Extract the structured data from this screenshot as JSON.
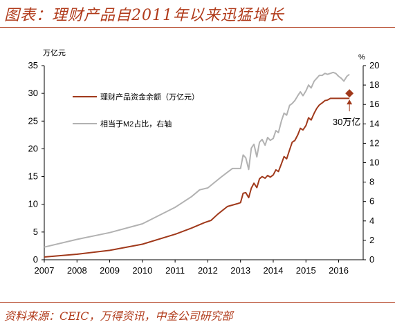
{
  "header": {
    "title": "图表：理财产品自2011年以来迅猛增长"
  },
  "footer": {
    "source": "资料来源：CEIC，万得资讯，中金公司研究部"
  },
  "colors": {
    "accent": "#b03a1a",
    "wmp_line": "#a0391b",
    "m2_line": "#b2b2b2"
  },
  "chart_data": {
    "type": "line",
    "x_ticks": [
      "2007",
      "2008",
      "2009",
      "2010",
      "2011",
      "2012",
      "2013",
      "2014",
      "2015",
      "2016"
    ],
    "xlim": [
      2007.0,
      2016.75
    ],
    "left_axis": {
      "unit": "万亿元",
      "ylim": [
        0,
        35
      ],
      "ticks": [
        "0",
        "5",
        "10",
        "15",
        "20",
        "25",
        "30",
        "35"
      ]
    },
    "right_axis": {
      "unit": "%",
      "ylim": [
        0,
        20
      ],
      "ticks": [
        "0",
        "2",
        "4",
        "6",
        "8",
        "10",
        "12",
        "14",
        "16",
        "18",
        "20"
      ]
    },
    "grid": false,
    "legend_position": "upper-left",
    "annotation": {
      "text": "30万亿",
      "x": 2016.33,
      "y": 30.0
    },
    "series": [
      {
        "name": "理财产品资金余额（万亿元）",
        "axis": "left",
        "x": [
          2007.0,
          2008.0,
          2009.0,
          2010.0,
          2011.0,
          2011.5,
          2011.9,
          2012.1,
          2012.3,
          2012.6,
          2012.9,
          2013.0,
          2013.08,
          2013.16,
          2013.25,
          2013.33,
          2013.41,
          2013.5,
          2013.58,
          2013.66,
          2013.75,
          2013.83,
          2013.91,
          2014.0,
          2014.08,
          2014.16,
          2014.25,
          2014.33,
          2014.41,
          2014.5,
          2014.58,
          2014.66,
          2014.75,
          2014.83,
          2014.91,
          2015.0,
          2015.08,
          2015.16,
          2015.25,
          2015.33,
          2015.41,
          2015.5,
          2015.58,
          2015.66,
          2015.75,
          2015.83,
          2015.91,
          2016.0,
          2016.16,
          2016.25,
          2016.33
        ],
        "values": [
          0.5,
          1.0,
          1.7,
          2.8,
          4.6,
          5.7,
          6.7,
          7.1,
          8.2,
          9.6,
          10.1,
          10.3,
          12.0,
          12.1,
          11.2,
          12.9,
          13.8,
          13.0,
          14.6,
          15.0,
          14.7,
          15.2,
          14.9,
          15.3,
          16.2,
          15.9,
          17.3,
          18.6,
          18.2,
          19.8,
          21.2,
          21.5,
          22.5,
          23.7,
          23.4,
          24.2,
          25.6,
          25.2,
          26.4,
          27.3,
          27.9,
          28.3,
          28.7,
          28.8,
          29.1,
          29.1,
          29.1,
          29.1,
          29.1,
          29.1,
          29.1
        ]
      },
      {
        "name": "相当于M2占比，右轴",
        "axis": "right",
        "x": [
          2007.0,
          2008.0,
          2009.0,
          2010.0,
          2011.0,
          2011.5,
          2011.75,
          2012.0,
          2012.4,
          2012.75,
          2012.92,
          2013.0,
          2013.08,
          2013.16,
          2013.25,
          2013.33,
          2013.41,
          2013.5,
          2013.58,
          2013.66,
          2013.75,
          2013.83,
          2013.91,
          2014.0,
          2014.08,
          2014.16,
          2014.25,
          2014.33,
          2014.41,
          2014.5,
          2014.58,
          2014.66,
          2014.75,
          2014.83,
          2014.91,
          2015.0,
          2015.08,
          2015.16,
          2015.25,
          2015.33,
          2015.41,
          2015.5,
          2015.58,
          2015.66,
          2015.75,
          2015.83,
          2015.91,
          2016.0,
          2016.08,
          2016.16,
          2016.25,
          2016.33
        ],
        "values": [
          1.3,
          2.1,
          2.8,
          3.7,
          5.4,
          6.5,
          7.2,
          7.4,
          8.5,
          9.4,
          9.4,
          9.4,
          10.8,
          10.5,
          9.3,
          11.5,
          11.9,
          10.6,
          12.1,
          12.4,
          11.8,
          12.6,
          12.3,
          12.5,
          13.3,
          13.1,
          14.3,
          15.1,
          14.9,
          15.9,
          16.1,
          16.4,
          16.9,
          17.3,
          16.9,
          17.4,
          18.0,
          17.7,
          18.4,
          18.7,
          19.0,
          19.0,
          19.2,
          19.1,
          19.2,
          19.3,
          19.2,
          18.9,
          18.7,
          18.4,
          18.9,
          19.1
        ]
      }
    ]
  }
}
